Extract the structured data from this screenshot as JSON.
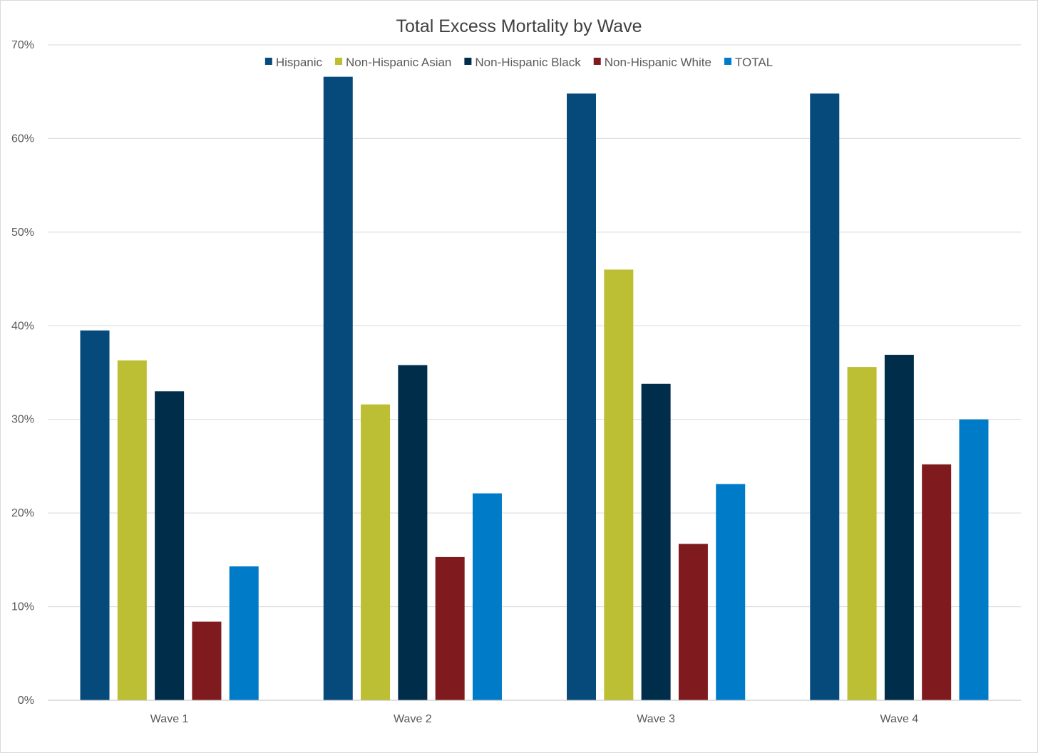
{
  "chart_data": {
    "type": "bar",
    "title": "Total Excess Mortality by Wave",
    "xlabel": "",
    "ylabel": "",
    "categories": [
      "Wave 1",
      "Wave 2",
      "Wave 3",
      "Wave 4"
    ],
    "y_ticks": [
      "0%",
      "10%",
      "20%",
      "30%",
      "40%",
      "50%",
      "60%",
      "70%"
    ],
    "y_tick_values": [
      0,
      10,
      20,
      30,
      40,
      50,
      60,
      70
    ],
    "ylim": [
      0,
      70
    ],
    "unit": "%",
    "grid": true,
    "legend_position": "top",
    "series": [
      {
        "name": "Hispanic",
        "color": "#054a7a",
        "values": [
          39.5,
          66.6,
          64.8,
          64.8
        ]
      },
      {
        "name": "Non-Hispanic Asian",
        "color": "#bcbe33",
        "values": [
          36.3,
          31.6,
          46.0,
          35.6
        ]
      },
      {
        "name": "Non-Hispanic Black",
        "color": "#002d4a",
        "values": [
          33.0,
          35.8,
          33.8,
          36.9
        ]
      },
      {
        "name": "Non-Hispanic White",
        "color": "#7f1a1e",
        "values": [
          8.4,
          15.3,
          16.7,
          25.2
        ]
      },
      {
        "name": "TOTAL",
        "color": "#007bc8",
        "values": [
          14.3,
          22.1,
          23.1,
          30.0
        ]
      }
    ]
  }
}
